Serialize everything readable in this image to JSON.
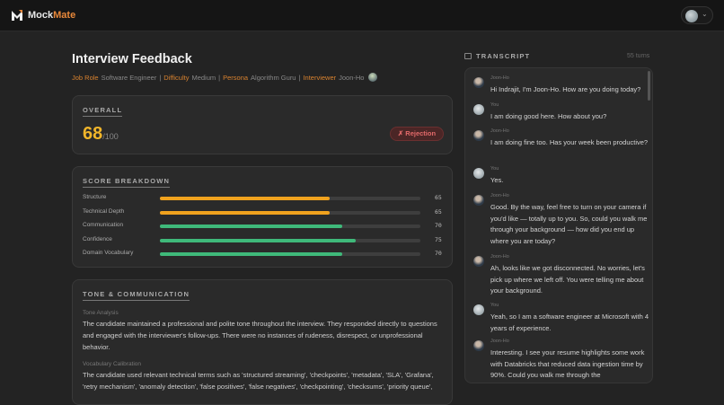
{
  "app": {
    "name_a": "Mock",
    "name_b": "Mate",
    "accent": "#e8883a"
  },
  "page": {
    "title": "Interview Feedback"
  },
  "meta": [
    {
      "key": "Job Role",
      "value": "Software Engineer"
    },
    {
      "key": "Difficulty",
      "value": "Medium"
    },
    {
      "key": "Persona",
      "value": "Algorithm Guru"
    },
    {
      "key": "Interviewer",
      "value": "Joon-Ho"
    }
  ],
  "overall": {
    "label": "OVERALL",
    "score": "68",
    "max": "/100",
    "verdict": "✗ Rejection"
  },
  "breakdown": {
    "label": "SCORE BREAKDOWN",
    "items": [
      {
        "name": "Structure",
        "value": 65,
        "color": "#f0a21e"
      },
      {
        "name": "Technical Depth",
        "value": 65,
        "color": "#f0a21e"
      },
      {
        "name": "Communication",
        "value": 70,
        "color": "#3fb97a"
      },
      {
        "name": "Confidence",
        "value": 75,
        "color": "#3fb97a"
      },
      {
        "name": "Domain Vocabulary",
        "value": 70,
        "color": "#3fb97a"
      }
    ]
  },
  "tone": {
    "label": "TONE & COMMUNICATION",
    "sub1": "Tone Analysis",
    "text1": "The candidate maintained a professional and polite tone throughout the interview. They responded directly to questions and engaged with the interviewer's follow-ups. There were no instances of rudeness, disrespect, or unprofessional behavior.",
    "sub2": "Vocabulary Calibration",
    "text2": "The candidate used relevant technical terms such as 'structured streaming', 'checkpoints', 'metadata', 'SLA', 'Grafana', 'retry mechanism', 'anomaly detection', 'false positives', 'false negatives', 'checkpointing', 'checksums', 'priority queue',"
  },
  "transcript": {
    "label": "TRANSCRIPT",
    "turns": "55 turns",
    "messages": [
      {
        "who": "Joon-Ho",
        "text": "Hi Indrajit, I'm Joon-Ho. How are you doing today?"
      },
      {
        "who": "You",
        "text": "I am doing good here. How about you?"
      },
      {
        "who": "Joon-Ho",
        "text": "I am doing fine too. Has your week been productive?"
      },
      {
        "who": "You",
        "text": "Yes."
      },
      {
        "who": "Joon-Ho",
        "text": "Good. By the way, feel free to turn on your camera if you'd like — totally up to you. So, could you walk me through your background — how did you end up where you are today?"
      },
      {
        "who": "Joon-Ho",
        "text": "Ah, looks like we got disconnected. No worries, let's pick up where we left off. You were telling me about your background."
      },
      {
        "who": "You",
        "text": "Yeah, so I am a software engineer at Microsoft with 4 years of experience."
      },
      {
        "who": "Joon-Ho",
        "text": "Interesting. I see your resume highlights some work with Databricks that reduced data ingestion time by 90%. Could you walk me through the"
      }
    ]
  }
}
